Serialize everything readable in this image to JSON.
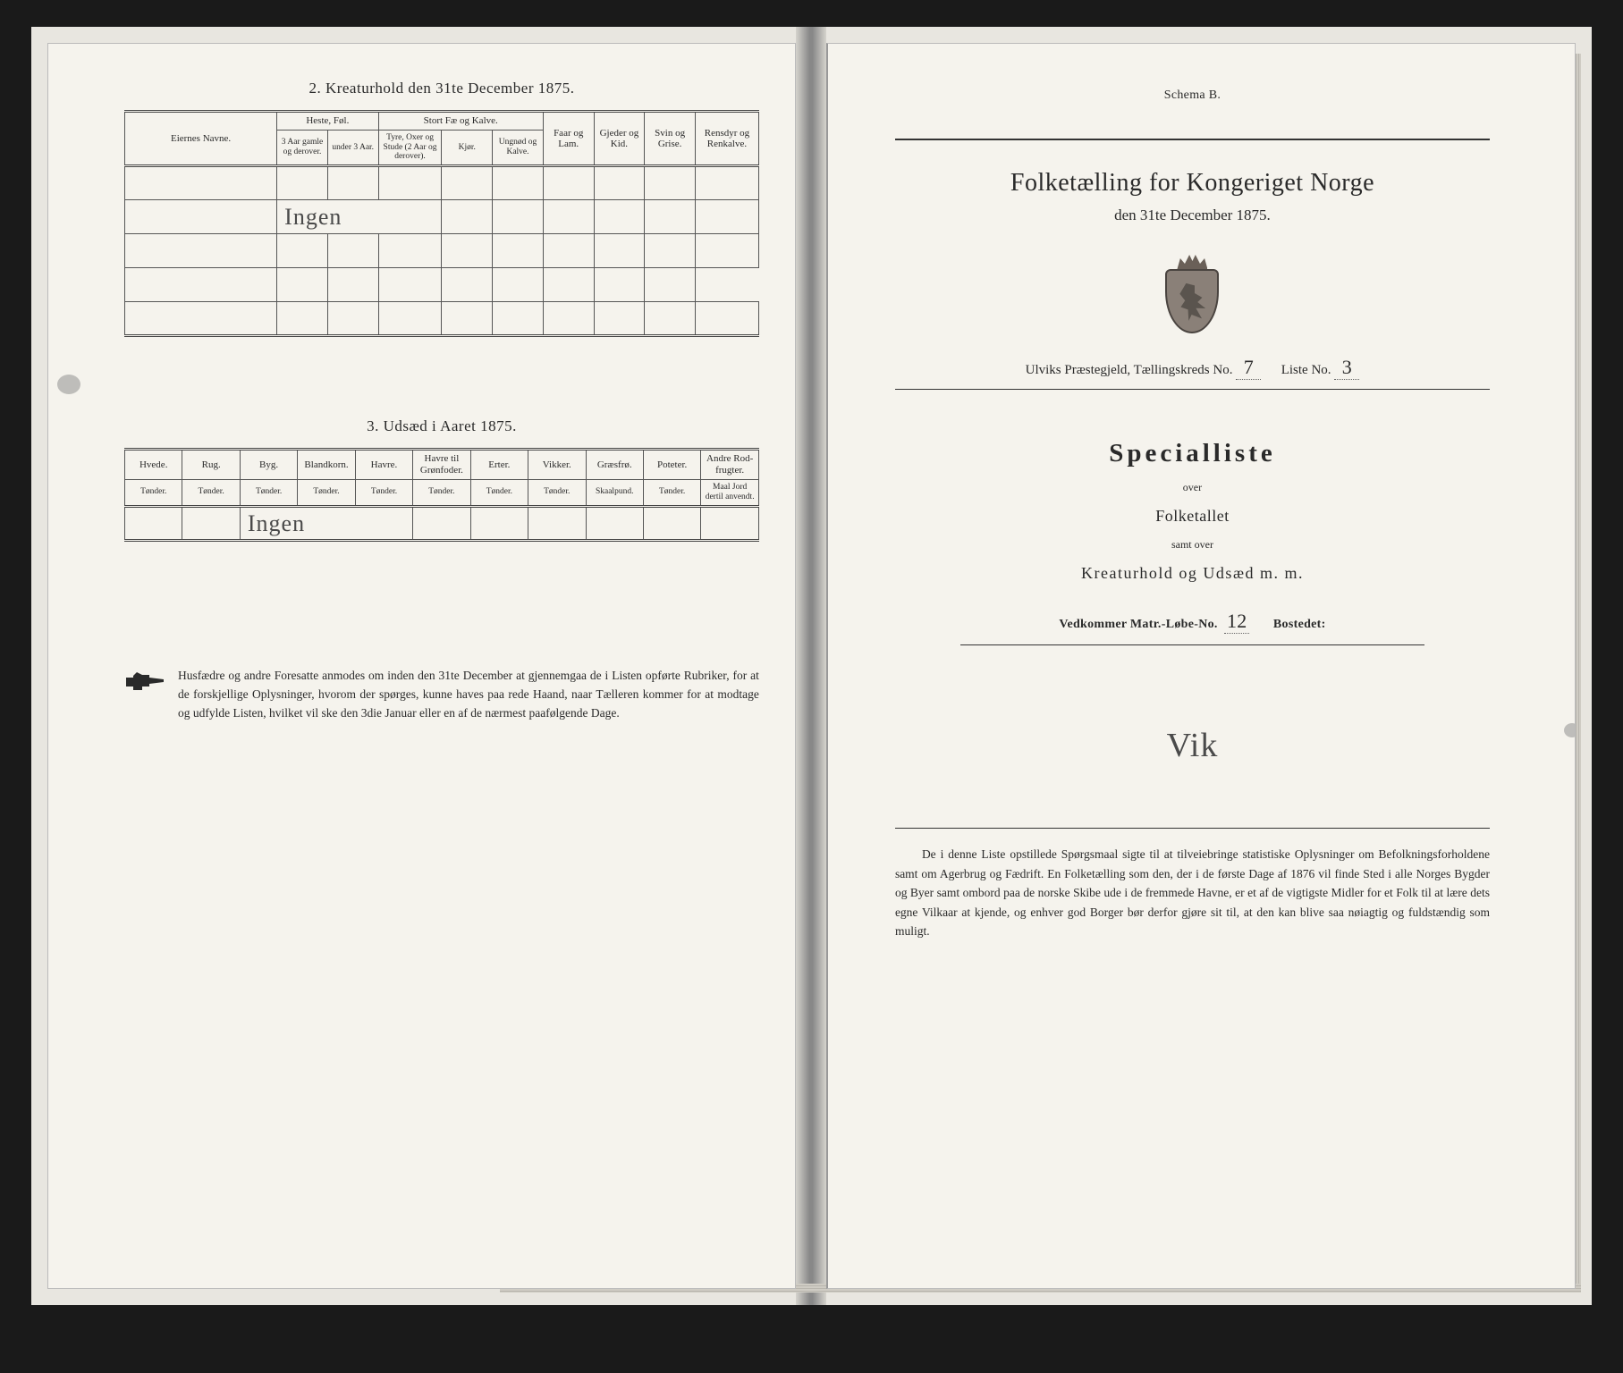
{
  "left": {
    "section2_title": "2.  Kreaturhold den 31te December 1875.",
    "table2": {
      "col_eiernes": "Eiernes Navne.",
      "grp_heste": "Heste, Føl.",
      "grp_stort": "Stort Fæ og Kalve.",
      "col_faar": "Faar og Lam.",
      "col_gjeder": "Gjeder og Kid.",
      "col_svin": "Svin og Grise.",
      "col_rensdyr": "Rensdyr og Renkalve.",
      "sub_heste_a": "3 Aar gamle og derover.",
      "sub_heste_b": "under 3 Aar.",
      "sub_stort_a": "Tyre, Oxer og Stude (2 Aar og derover).",
      "sub_stort_b": "Kjør.",
      "sub_stort_c": "Ungnød og Kalve.",
      "hand_ingen": "Ingen"
    },
    "section3_title": "3.  Udsæd i Aaret 1875.",
    "table3": {
      "cols": [
        {
          "h": "Hvede.",
          "s": "Tønder."
        },
        {
          "h": "Rug.",
          "s": "Tønder."
        },
        {
          "h": "Byg.",
          "s": "Tønder."
        },
        {
          "h": "Blandkorn.",
          "s": "Tønder."
        },
        {
          "h": "Havre.",
          "s": "Tønder."
        },
        {
          "h": "Havre til Grønfoder.",
          "s": "Tønder."
        },
        {
          "h": "Erter.",
          "s": "Tønder."
        },
        {
          "h": "Vikker.",
          "s": "Tønder."
        },
        {
          "h": "Græsfrø.",
          "s": "Skaalpund."
        },
        {
          "h": "Poteter.",
          "s": "Tønder."
        },
        {
          "h": "Andre Rod-frugter.",
          "s": "Maal Jord dertil anvendt."
        }
      ],
      "hand_ingen": "Ingen"
    },
    "note": "Husfædre og andre Foresatte anmodes om inden den 31te December at gjennemgaa de i Listen opførte Rubriker, for at de forskjellige Oplysninger, hvorom der spørges, kunne haves paa rede Haand, naar Tælleren kommer for at modtage og udfylde Listen, hvilket vil ske den 3die Januar eller en af de nærmest paafølgende Dage."
  },
  "right": {
    "schema": "Schema B.",
    "title": "Folketælling for Kongeriget Norge",
    "subtitle": "den 31te December 1875.",
    "parish_label1": "Ulviks Præstegjeld,  Tællingskreds No.",
    "kreds_no": "7",
    "liste_label": "Liste No.",
    "liste_no": "3",
    "special": "Specialliste",
    "over1": "over",
    "folketallet": "Folketallet",
    "samt": "samt over",
    "kreatur": "Kreaturhold og Udsæd m. m.",
    "matr_label": "Vedkommer Matr.-Løbe-No.",
    "matr_no": "12",
    "bostedet": "Bostedet:",
    "place": "Vik",
    "para": "De i denne Liste opstillede Spørgsmaal sigte til at tilveiebringe statistiske Oplysninger om Befolkningsforholdene samt om Agerbrug og Fædrift.  En Folketælling som den, der i de første Dage af 1876 vil finde Sted i alle Norges Bygder og Byer samt ombord paa de norske Skibe ude i de fremmede Havne, er et af de vigtigste Midler for et Folk til at lære dets egne Vilkaar at kjende, og enhver god Borger bør derfor gjøre sit til, at den kan blive saa nøiagtig og fuldstændig som muligt."
  }
}
